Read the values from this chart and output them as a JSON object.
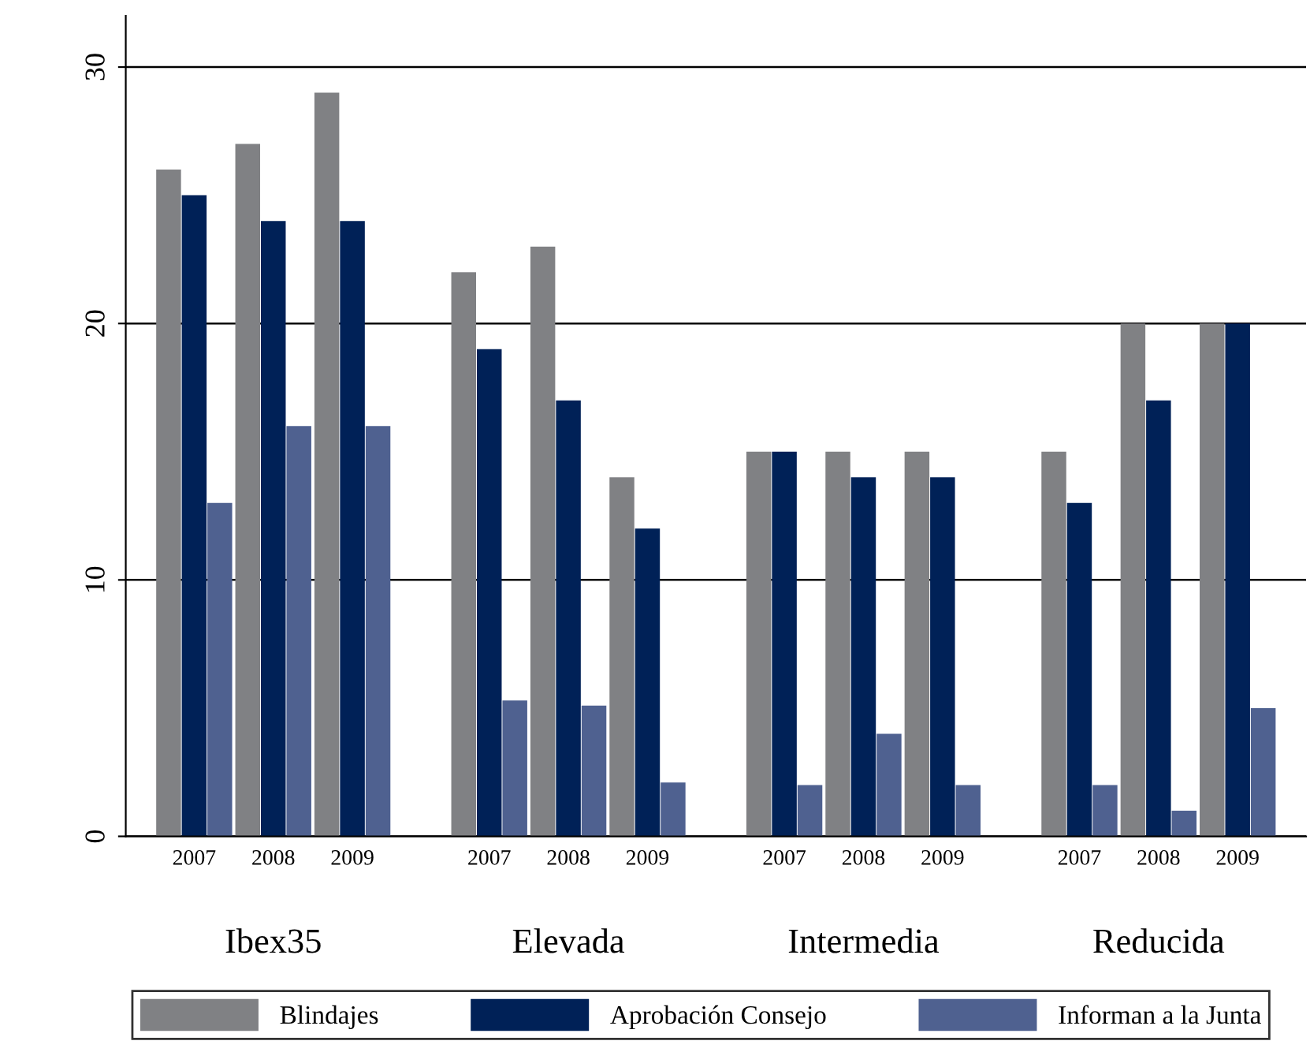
{
  "chart_data": {
    "type": "bar",
    "categories": [
      "2007",
      "2008",
      "2009",
      "2007",
      "2008",
      "2009",
      "2007",
      "2008",
      "2009",
      "2007",
      "2008",
      "2009"
    ],
    "annotations": [
      "Ibex35",
      "Elevada",
      "Intermedia",
      "Reducida"
    ],
    "series": [
      {
        "name": "Blindajes",
        "color": "#808184",
        "values": [
          26,
          27,
          29,
          22,
          23,
          14,
          15,
          15,
          15,
          15,
          20,
          20
        ]
      },
      {
        "name": "Aprobación Consejo",
        "color": "#002157",
        "values": [
          25,
          24,
          24,
          19,
          17,
          12,
          15,
          14,
          14,
          13,
          17,
          20
        ]
      },
      {
        "name": "Informan a la Junta",
        "color": "#4f6190",
        "values": [
          13,
          16,
          16,
          5.3,
          5.1,
          2.1,
          2,
          4,
          2,
          2,
          1,
          5
        ]
      }
    ],
    "ylim": [
      0,
      32
    ],
    "yticks": [
      0,
      10,
      20,
      30
    ],
    "grid": "y",
    "legend": "bottom"
  }
}
